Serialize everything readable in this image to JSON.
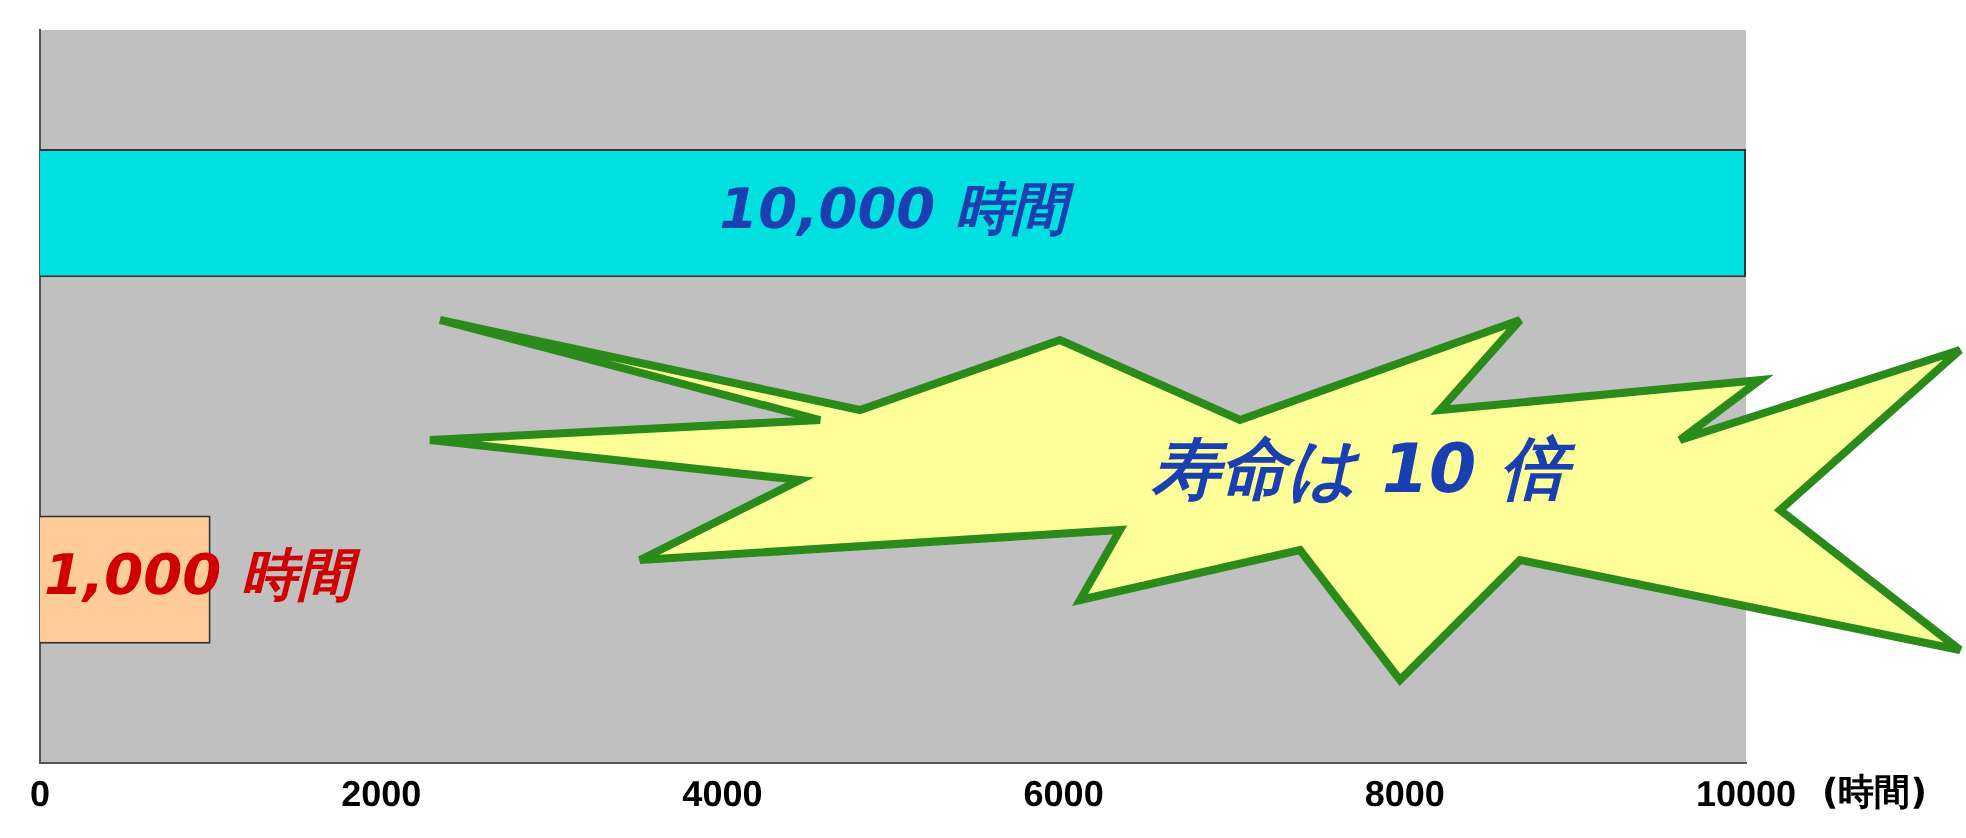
{
  "chart_data": {
    "type": "bar",
    "orientation": "horizontal",
    "categories": [
      null,
      null
    ],
    "values": [
      10000,
      1000
    ],
    "colors": [
      "#00e0e0",
      "#ffcc99"
    ],
    "value_labels": [
      "10,000 時間",
      "1,000 時間"
    ],
    "xlabel": "(時間)",
    "xlim": [
      0,
      10000
    ],
    "xticks": [
      0,
      2000,
      4000,
      6000,
      8000,
      10000
    ],
    "tick_labels": "x",
    "grid": false,
    "legend": false,
    "annotations": [
      "寿命は 10 倍"
    ]
  }
}
